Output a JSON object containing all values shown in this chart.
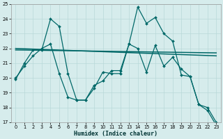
{
  "xlabel": "Humidex (Indice chaleur)",
  "xlim": [
    -0.5,
    23.5
  ],
  "ylim": [
    17,
    25
  ],
  "xticks": [
    0,
    1,
    2,
    3,
    4,
    5,
    6,
    7,
    8,
    9,
    10,
    11,
    12,
    13,
    14,
    15,
    16,
    17,
    18,
    19,
    20,
    21,
    22,
    23
  ],
  "yticks": [
    17,
    18,
    19,
    20,
    21,
    22,
    23,
    24,
    25
  ],
  "bg_color": "#d6ecec",
  "grid_color": "#b8d8d8",
  "line_color": "#006868",
  "series": [
    {
      "x": [
        0,
        1,
        2,
        3,
        4,
        5,
        6,
        7,
        8,
        9,
        10,
        11,
        12,
        13,
        14,
        15,
        16,
        17,
        18,
        19,
        20,
        21,
        22,
        23
      ],
      "y": [
        19.9,
        21.0,
        21.9,
        21.9,
        24.0,
        23.5,
        20.3,
        18.5,
        18.5,
        19.3,
        20.4,
        20.3,
        20.3,
        22.3,
        24.8,
        23.7,
        24.1,
        23.0,
        22.5,
        20.2,
        20.1,
        18.2,
        17.8,
        16.8
      ],
      "marker": true,
      "lw": 0.9
    },
    {
      "x": [
        0,
        23
      ],
      "y": [
        21.9,
        21.7
      ],
      "marker": false,
      "lw": 1.1
    },
    {
      "x": [
        0,
        23
      ],
      "y": [
        22.0,
        21.5
      ],
      "marker": false,
      "lw": 1.1
    },
    {
      "x": [
        0,
        1,
        2,
        3,
        4,
        5,
        6,
        7,
        8,
        9,
        10,
        11,
        12,
        13,
        14,
        15,
        16,
        17,
        18,
        19,
        20,
        21,
        22,
        23
      ],
      "y": [
        20.0,
        20.8,
        21.5,
        22.0,
        22.3,
        20.3,
        18.7,
        18.5,
        18.5,
        19.5,
        19.8,
        20.5,
        20.5,
        22.3,
        22.0,
        20.4,
        22.2,
        20.8,
        21.4,
        20.6,
        20.1,
        18.2,
        18.0,
        17.0
      ],
      "marker": true,
      "lw": 0.9
    }
  ]
}
